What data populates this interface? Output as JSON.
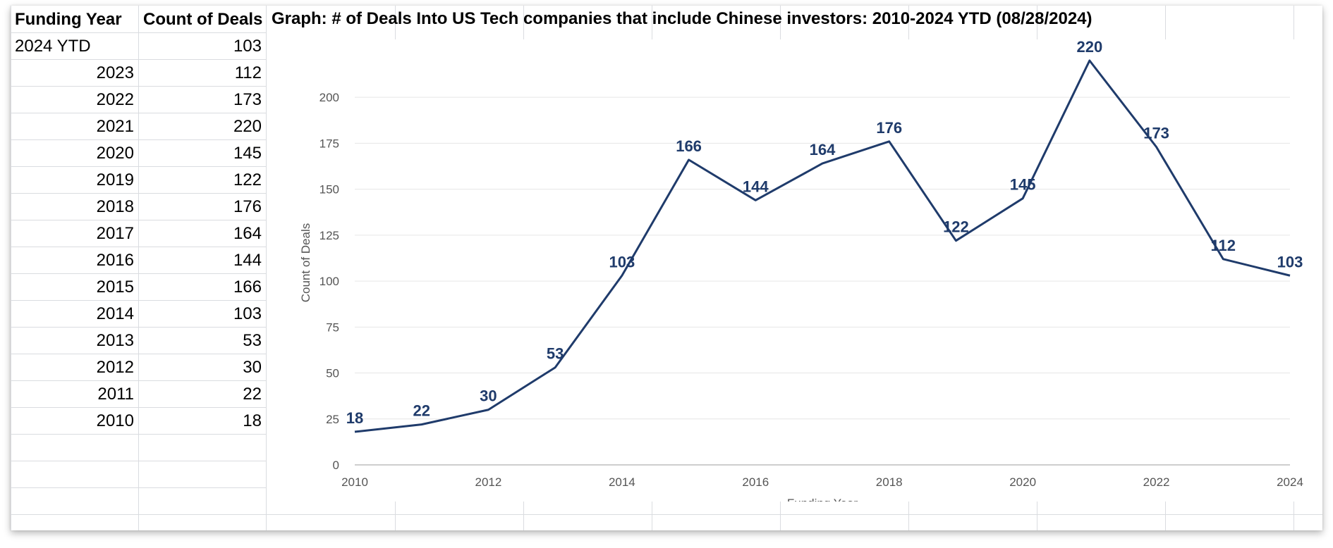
{
  "table": {
    "headers": [
      "Funding Year",
      "Count of Deals"
    ],
    "rows": [
      {
        "year": "2024 YTD",
        "count": "103"
      },
      {
        "year": "2023",
        "count": "112"
      },
      {
        "year": "2022",
        "count": "173"
      },
      {
        "year": "2021",
        "count": "220"
      },
      {
        "year": "2020",
        "count": "145"
      },
      {
        "year": "2019",
        "count": "122"
      },
      {
        "year": "2018",
        "count": "176"
      },
      {
        "year": "2017",
        "count": "164"
      },
      {
        "year": "2016",
        "count": "144"
      },
      {
        "year": "2015",
        "count": "166"
      },
      {
        "year": "2014",
        "count": "103"
      },
      {
        "year": "2013",
        "count": "53"
      },
      {
        "year": "2012",
        "count": "30"
      },
      {
        "year": "2011",
        "count": "22"
      },
      {
        "year": "2010",
        "count": "18"
      }
    ]
  },
  "chart_data": {
    "type": "line",
    "title": "Graph: # of Deals Into US Tech companies that include Chinese investors: 2010-2024 YTD (08/28/2024)",
    "xlabel": "Funding Year",
    "ylabel": "Count of Deals",
    "x": [
      2010,
      2011,
      2012,
      2013,
      2014,
      2015,
      2016,
      2017,
      2018,
      2019,
      2020,
      2021,
      2022,
      2023,
      2024
    ],
    "values": [
      18,
      22,
      30,
      53,
      103,
      166,
      144,
      164,
      176,
      122,
      145,
      220,
      173,
      112,
      103
    ],
    "xticks": [
      2010,
      2012,
      2014,
      2016,
      2018,
      2020,
      2022,
      2024
    ],
    "yticks": [
      0,
      25,
      50,
      75,
      100,
      125,
      150,
      175,
      200
    ],
    "xlim": [
      2010,
      2024
    ],
    "ylim": [
      0,
      220
    ],
    "grid": true,
    "colors": {
      "line": "#1f3b6b",
      "label": "#1f3b6b",
      "grid": "#e6e6e6",
      "tick": "#555555"
    }
  }
}
